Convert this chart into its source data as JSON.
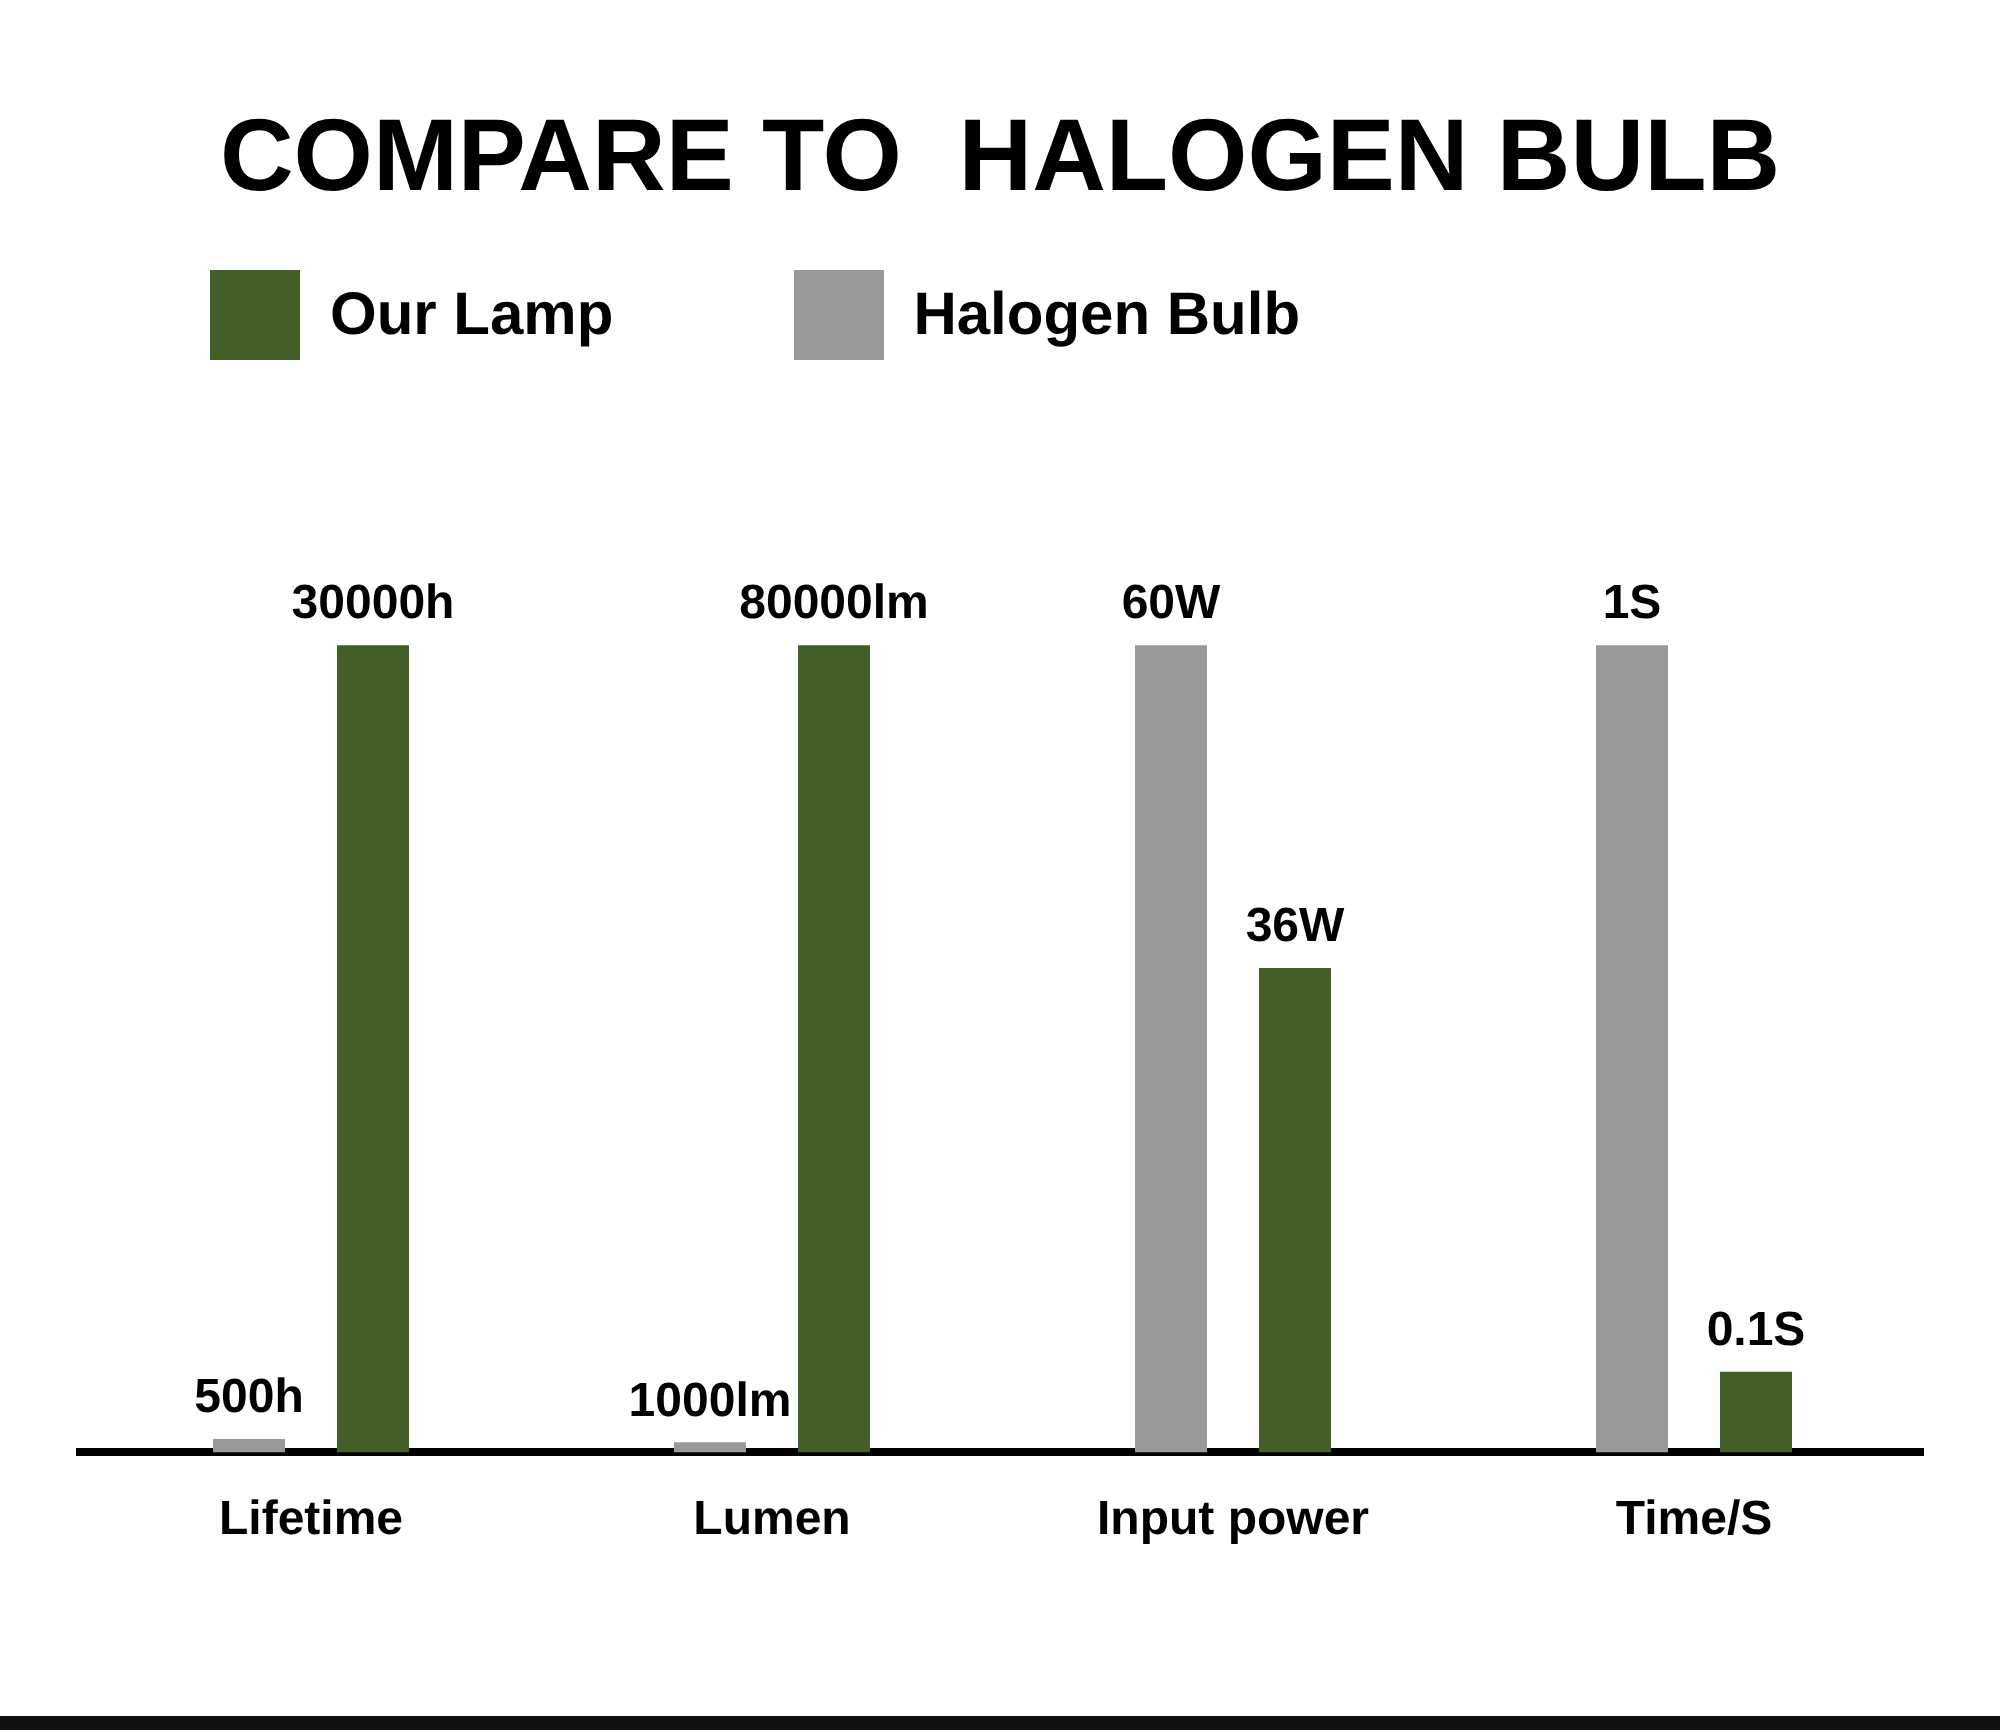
{
  "chart_data": [
    {
      "type": "bar",
      "title": "COMPARE TO  HALOGEN BULB",
      "categories": [
        "Lifetime"
      ],
      "series": [
        {
          "name": "Halogen Bulb",
          "color": "#999999",
          "values": [
            500
          ],
          "value_labels": [
            "500h"
          ]
        },
        {
          "name": "Our Lamp",
          "color": "#435e26",
          "values": [
            30000
          ],
          "value_labels": [
            "30000h"
          ]
        }
      ],
      "legend": "top right",
      "tick_labels": "x"
    },
    {
      "type": "bar",
      "categories": [
        "Lumen"
      ],
      "series": [
        {
          "color": "#999999",
          "values": [
            1000
          ],
          "value_labels": [
            "1000lm"
          ]
        },
        {
          "color": "#435e26",
          "values": [
            80000
          ],
          "value_labels": [
            "80000lm"
          ]
        }
      ],
      "tick_labels": "x"
    },
    {
      "type": "bar",
      "categories": [
        "Input power"
      ],
      "series": [
        {
          "color": "#999999",
          "values": [
            60
          ],
          "value_labels": [
            "60W"
          ]
        },
        {
          "color": "#435e26",
          "values": [
            36
          ],
          "value_labels": [
            "36W"
          ]
        }
      ],
      "tick_labels": "x"
    },
    {
      "type": "bar",
      "categories": [
        "Time/S"
      ],
      "series": [
        {
          "color": "#999999",
          "values": [
            1
          ],
          "value_labels": [
            "1S"
          ]
        },
        {
          "color": "#435e26",
          "values": [
            0.1
          ],
          "value_labels": [
            "0.1S"
          ]
        }
      ],
      "tick_labels": "x"
    }
  ]
}
